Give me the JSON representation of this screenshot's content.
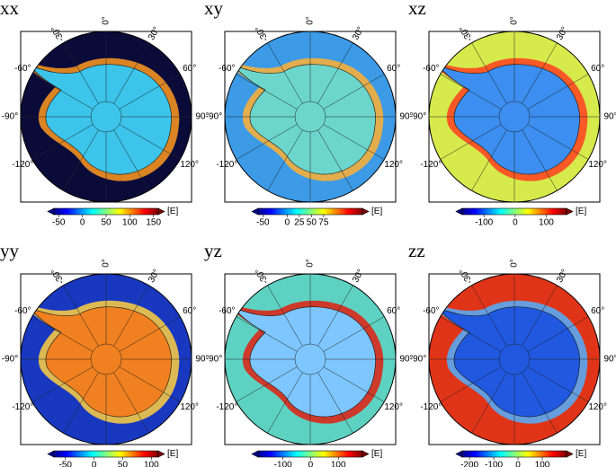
{
  "panels": [
    {
      "label": "xx",
      "colorbar": {
        "lim": [
          -60,
          160
        ],
        "ticks": [
          -50,
          0,
          50,
          100,
          150
        ]
      }
    },
    {
      "label": "xy",
      "colorbar": {
        "lim": [
          -60,
          155
        ],
        "ticks": [
          -50,
          0,
          25,
          50,
          75
        ]
      }
    },
    {
      "label": "xz",
      "colorbar": {
        "lim": [
          -170,
          165
        ],
        "ticks": [
          -100,
          0,
          100
        ]
      }
    },
    {
      "label": "yy",
      "colorbar": {
        "lim": [
          -70,
          112
        ],
        "ticks": [
          -50,
          0,
          50,
          100
        ]
      }
    },
    {
      "label": "yz",
      "colorbar": {
        "lim": [
          -190,
          187
        ],
        "ticks": [
          -100,
          0,
          100
        ]
      }
    },
    {
      "label": "zz",
      "colorbar": {
        "lim": [
          -230,
          200
        ],
        "ticks": [
          -200,
          -100,
          0,
          100
        ]
      }
    }
  ],
  "colorbar_unit": "[E]",
  "longitude_labels": [
    "-30°",
    "0°",
    "30°",
    "60°",
    "90°",
    "120°",
    "-120°",
    "-90°",
    "-60°"
  ]
}
